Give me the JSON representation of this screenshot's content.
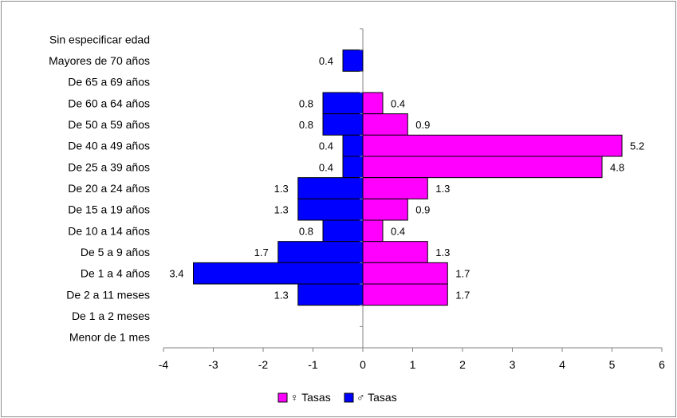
{
  "chart_data": {
    "type": "bar",
    "orientation": "horizontal",
    "title": "",
    "xlabel": "",
    "ylabel": "",
    "xlim": [
      -4,
      6
    ],
    "x_ticks": [
      -4,
      -3,
      -2,
      -1,
      0,
      1,
      2,
      3,
      4,
      5,
      6
    ],
    "grid": false,
    "legend_position": "bottom",
    "categories": [
      "Sin especificar edad",
      "Mayores de 70 años",
      "De 65 a 69 años",
      "De 60 a 64 años",
      "De 50 a 59 años",
      "De 40 a 49 años",
      "De 25 a 39 años",
      "De 20 a 24 años",
      "De 15 a 19 años",
      "De 10 a 14 años",
      "De 5 a 9 años",
      "De 1 a 4 años",
      "De 2 a 11 meses",
      "De 1 a 2 meses",
      "Menor de 1 mes"
    ],
    "series": [
      {
        "name": "♀ Tasas",
        "color": "#ff00ff",
        "values": [
          null,
          null,
          null,
          0.4,
          0.9,
          5.2,
          4.8,
          1.3,
          0.9,
          0.4,
          1.3,
          1.7,
          1.7,
          null,
          null
        ],
        "labels": [
          "",
          "",
          "",
          "0.4",
          "0.9",
          "5.2",
          "4.8",
          "1.3",
          "0.9",
          "0.4",
          "1.3",
          "1.7",
          "1.7",
          "",
          ""
        ]
      },
      {
        "name": "♂ Tasas",
        "color": "#0000ff",
        "values": [
          null,
          -0.4,
          null,
          -0.8,
          -0.8,
          -0.4,
          -0.4,
          -1.3,
          -1.3,
          -0.8,
          -1.7,
          -3.4,
          -1.3,
          null,
          null
        ],
        "labels": [
          "",
          "0.4",
          "",
          "0.8",
          "0.8",
          "0.4",
          "0.4",
          "1.3",
          "1.3",
          "0.8",
          "1.7",
          "3.4",
          "1.3",
          "",
          ""
        ]
      }
    ]
  }
}
